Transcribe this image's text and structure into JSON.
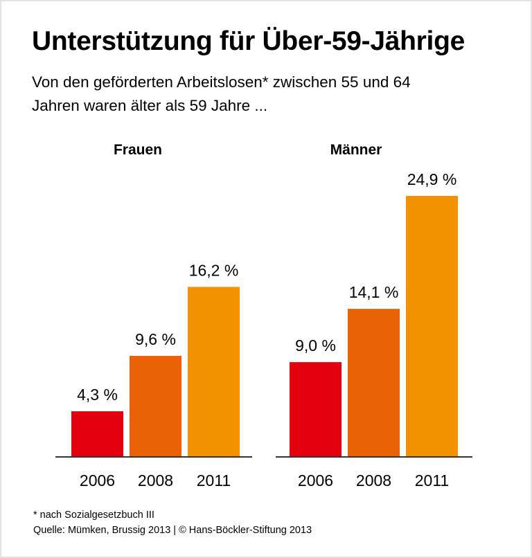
{
  "title": "Unterstützung für Über-59-Jährige",
  "subtitle_lines": [
    "Von den geförderten Arbeitslosen* zwischen 55 und 64",
    "Jahren waren älter als 59 Jahre ..."
  ],
  "footnote": "* nach Sozialgesetzbuch III",
  "source": "Quelle: Mümken, Brussig 2013 | © Hans-Böckler-Stiftung 2013",
  "chart_data": [
    {
      "type": "bar",
      "title": "Frauen",
      "categories": [
        "2006",
        "2008",
        "2011"
      ],
      "values": [
        4.3,
        9.6,
        16.2
      ],
      "labels": [
        "4,3 %",
        "9,6 %",
        "16,2 %"
      ],
      "colors": [
        "#e3000f",
        "#ea6206",
        "#f39200"
      ],
      "ylim": [
        0,
        25
      ],
      "grid": false
    },
    {
      "type": "bar",
      "title": "Männer",
      "categories": [
        "2006",
        "2008",
        "2011"
      ],
      "values": [
        9.0,
        14.1,
        24.9
      ],
      "labels": [
        "9,0 %",
        "14,1 %",
        "24,9 %"
      ],
      "colors": [
        "#e3000f",
        "#ea6206",
        "#f39200"
      ],
      "ylim": [
        0,
        25
      ],
      "grid": false
    }
  ]
}
